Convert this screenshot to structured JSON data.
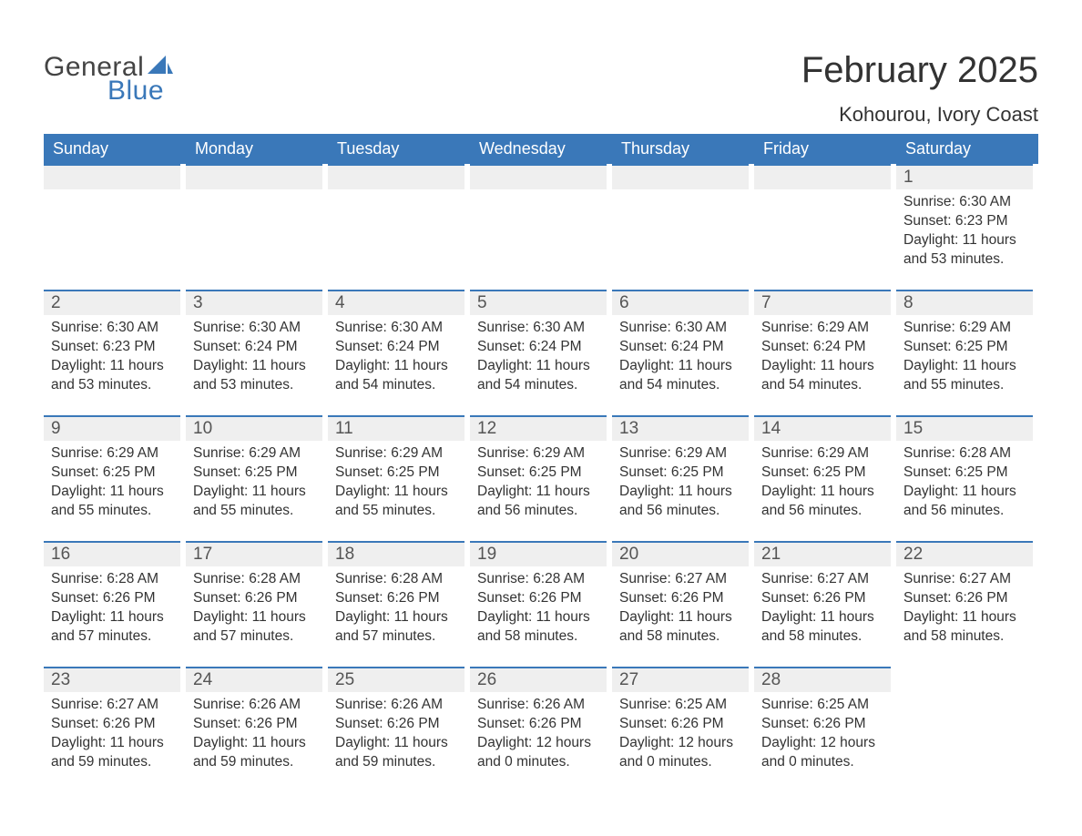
{
  "logo": {
    "text1": "General",
    "text2": "Blue",
    "brand_color": "#3a78b9",
    "text_color": "#444444"
  },
  "title": "February 2025",
  "location": "Kohourou, Ivory Coast",
  "colors": {
    "header_bg": "#3a78b9",
    "header_text": "#ffffff",
    "daybar_border": "#3a78b9",
    "daybar_bg": "#efefef",
    "body_text": "#333333",
    "page_bg": "#ffffff"
  },
  "typography": {
    "title_fontsize": 40,
    "location_fontsize": 22,
    "dow_fontsize": 18,
    "daynum_fontsize": 19,
    "body_fontsize": 15.5,
    "font_family": "Arial"
  },
  "days_of_week": [
    "Sunday",
    "Monday",
    "Tuesday",
    "Wednesday",
    "Thursday",
    "Friday",
    "Saturday"
  ],
  "labels": {
    "sunrise": "Sunrise:",
    "sunset": "Sunset:",
    "daylight": "Daylight:"
  },
  "weeks": [
    [
      {
        "empty": true
      },
      {
        "empty": true
      },
      {
        "empty": true
      },
      {
        "empty": true
      },
      {
        "empty": true
      },
      {
        "empty": true
      },
      {
        "day": "1",
        "sunrise": "6:30 AM",
        "sunset": "6:23 PM",
        "daylight": "11 hours and 53 minutes."
      }
    ],
    [
      {
        "day": "2",
        "sunrise": "6:30 AM",
        "sunset": "6:23 PM",
        "daylight": "11 hours and 53 minutes."
      },
      {
        "day": "3",
        "sunrise": "6:30 AM",
        "sunset": "6:24 PM",
        "daylight": "11 hours and 53 minutes."
      },
      {
        "day": "4",
        "sunrise": "6:30 AM",
        "sunset": "6:24 PM",
        "daylight": "11 hours and 54 minutes."
      },
      {
        "day": "5",
        "sunrise": "6:30 AM",
        "sunset": "6:24 PM",
        "daylight": "11 hours and 54 minutes."
      },
      {
        "day": "6",
        "sunrise": "6:30 AM",
        "sunset": "6:24 PM",
        "daylight": "11 hours and 54 minutes."
      },
      {
        "day": "7",
        "sunrise": "6:29 AM",
        "sunset": "6:24 PM",
        "daylight": "11 hours and 54 minutes."
      },
      {
        "day": "8",
        "sunrise": "6:29 AM",
        "sunset": "6:25 PM",
        "daylight": "11 hours and 55 minutes."
      }
    ],
    [
      {
        "day": "9",
        "sunrise": "6:29 AM",
        "sunset": "6:25 PM",
        "daylight": "11 hours and 55 minutes."
      },
      {
        "day": "10",
        "sunrise": "6:29 AM",
        "sunset": "6:25 PM",
        "daylight": "11 hours and 55 minutes."
      },
      {
        "day": "11",
        "sunrise": "6:29 AM",
        "sunset": "6:25 PM",
        "daylight": "11 hours and 55 minutes."
      },
      {
        "day": "12",
        "sunrise": "6:29 AM",
        "sunset": "6:25 PM",
        "daylight": "11 hours and 56 minutes."
      },
      {
        "day": "13",
        "sunrise": "6:29 AM",
        "sunset": "6:25 PM",
        "daylight": "11 hours and 56 minutes."
      },
      {
        "day": "14",
        "sunrise": "6:29 AM",
        "sunset": "6:25 PM",
        "daylight": "11 hours and 56 minutes."
      },
      {
        "day": "15",
        "sunrise": "6:28 AM",
        "sunset": "6:25 PM",
        "daylight": "11 hours and 56 minutes."
      }
    ],
    [
      {
        "day": "16",
        "sunrise": "6:28 AM",
        "sunset": "6:26 PM",
        "daylight": "11 hours and 57 minutes."
      },
      {
        "day": "17",
        "sunrise": "6:28 AM",
        "sunset": "6:26 PM",
        "daylight": "11 hours and 57 minutes."
      },
      {
        "day": "18",
        "sunrise": "6:28 AM",
        "sunset": "6:26 PM",
        "daylight": "11 hours and 57 minutes."
      },
      {
        "day": "19",
        "sunrise": "6:28 AM",
        "sunset": "6:26 PM",
        "daylight": "11 hours and 58 minutes."
      },
      {
        "day": "20",
        "sunrise": "6:27 AM",
        "sunset": "6:26 PM",
        "daylight": "11 hours and 58 minutes."
      },
      {
        "day": "21",
        "sunrise": "6:27 AM",
        "sunset": "6:26 PM",
        "daylight": "11 hours and 58 minutes."
      },
      {
        "day": "22",
        "sunrise": "6:27 AM",
        "sunset": "6:26 PM",
        "daylight": "11 hours and 58 minutes."
      }
    ],
    [
      {
        "day": "23",
        "sunrise": "6:27 AM",
        "sunset": "6:26 PM",
        "daylight": "11 hours and 59 minutes."
      },
      {
        "day": "24",
        "sunrise": "6:26 AM",
        "sunset": "6:26 PM",
        "daylight": "11 hours and 59 minutes."
      },
      {
        "day": "25",
        "sunrise": "6:26 AM",
        "sunset": "6:26 PM",
        "daylight": "11 hours and 59 minutes."
      },
      {
        "day": "26",
        "sunrise": "6:26 AM",
        "sunset": "6:26 PM",
        "daylight": "12 hours and 0 minutes."
      },
      {
        "day": "27",
        "sunrise": "6:25 AM",
        "sunset": "6:26 PM",
        "daylight": "12 hours and 0 minutes."
      },
      {
        "day": "28",
        "sunrise": "6:25 AM",
        "sunset": "6:26 PM",
        "daylight": "12 hours and 0 minutes."
      },
      {
        "empty": true,
        "no_bar": true
      }
    ]
  ]
}
